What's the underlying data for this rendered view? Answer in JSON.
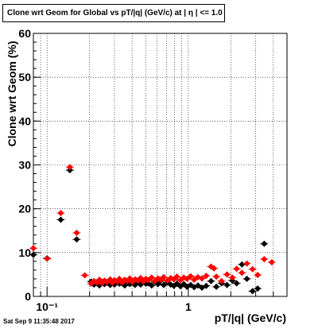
{
  "title": "Clone wrt Geom for Global vs pT/|q| (GeV/c) at |  η | <= 1.0",
  "datestamp": "Sat Sep  9 11:35:48 2017",
  "chart_data": {
    "type": "scatter",
    "title": "Clone wrt Geom for Global vs pT/|q| (GeV/c) at |  η | <= 1.0",
    "xlabel": "pT/|q| (GeV/c)",
    "ylabel": "Clone wrt Geom (%)",
    "xscale": "log",
    "xlim": [
      0.08,
      5.0
    ],
    "ylim": [
      0,
      60
    ],
    "yticks": [
      0,
      10,
      20,
      30,
      40,
      50,
      60
    ],
    "xtick_labels": [
      {
        "x": 0.1,
        "label": "10⁻¹"
      },
      {
        "x": 1,
        "label": "1"
      }
    ],
    "grid": true,
    "series": [
      {
        "color": "#000000",
        "marker": "diamond",
        "points": [
          {
            "x": 0.08,
            "y": 9.5
          },
          {
            "x": 0.1,
            "y": 8.7
          },
          {
            "x": 0.125,
            "y": 17.5
          },
          {
            "x": 0.145,
            "y": 28.8
          },
          {
            "x": 0.162,
            "y": 13.0
          },
          {
            "x": 0.205,
            "y": 3.4
          },
          {
            "x": 0.215,
            "y": 2.7
          },
          {
            "x": 0.225,
            "y": 3.0
          },
          {
            "x": 0.235,
            "y": 2.5
          },
          {
            "x": 0.245,
            "y": 3.3
          },
          {
            "x": 0.255,
            "y": 2.8
          },
          {
            "x": 0.265,
            "y": 3.1
          },
          {
            "x": 0.28,
            "y": 2.6
          },
          {
            "x": 0.29,
            "y": 3.2
          },
          {
            "x": 0.3,
            "y": 2.7
          },
          {
            "x": 0.315,
            "y": 3.4
          },
          {
            "x": 0.325,
            "y": 2.9
          },
          {
            "x": 0.34,
            "y": 3.0
          },
          {
            "x": 0.355,
            "y": 2.5
          },
          {
            "x": 0.37,
            "y": 3.3
          },
          {
            "x": 0.385,
            "y": 2.8
          },
          {
            "x": 0.4,
            "y": 3.1
          },
          {
            "x": 0.42,
            "y": 2.6
          },
          {
            "x": 0.44,
            "y": 3.2
          },
          {
            "x": 0.46,
            "y": 2.7
          },
          {
            "x": 0.48,
            "y": 3.4
          },
          {
            "x": 0.5,
            "y": 2.9
          },
          {
            "x": 0.52,
            "y": 3.0
          },
          {
            "x": 0.55,
            "y": 2.5
          },
          {
            "x": 0.58,
            "y": 3.3
          },
          {
            "x": 0.61,
            "y": 2.8
          },
          {
            "x": 0.64,
            "y": 3.6
          },
          {
            "x": 0.67,
            "y": 2.6
          },
          {
            "x": 0.71,
            "y": 3.2
          },
          {
            "x": 0.75,
            "y": 2.7
          },
          {
            "x": 0.79,
            "y": 2.4
          },
          {
            "x": 0.83,
            "y": 2.9
          },
          {
            "x": 0.88,
            "y": 2.3
          },
          {
            "x": 0.93,
            "y": 2.8
          },
          {
            "x": 0.98,
            "y": 2.2
          },
          {
            "x": 1.04,
            "y": 2.6
          },
          {
            "x": 1.1,
            "y": 2.1
          },
          {
            "x": 1.17,
            "y": 2.5
          },
          {
            "x": 1.25,
            "y": 2.0
          },
          {
            "x": 1.34,
            "y": 2.4
          },
          {
            "x": 1.45,
            "y": 3.5
          },
          {
            "x": 1.58,
            "y": 2.2
          },
          {
            "x": 1.72,
            "y": 3.0
          },
          {
            "x": 1.88,
            "y": 2.6
          },
          {
            "x": 2.05,
            "y": 3.6
          },
          {
            "x": 2.2,
            "y": 3.0
          },
          {
            "x": 2.4,
            "y": 7.3
          },
          {
            "x": 2.6,
            "y": 4.0
          },
          {
            "x": 2.85,
            "y": 1.2
          },
          {
            "x": 3.1,
            "y": 1.8
          },
          {
            "x": 3.45,
            "y": 12.0
          }
        ]
      },
      {
        "color": "#ff0000",
        "marker": "diamond",
        "points": [
          {
            "x": 0.08,
            "y": 11.0
          },
          {
            "x": 0.1,
            "y": 8.6
          },
          {
            "x": 0.125,
            "y": 19.0
          },
          {
            "x": 0.145,
            "y": 29.5
          },
          {
            "x": 0.162,
            "y": 14.5
          },
          {
            "x": 0.185,
            "y": 4.8
          },
          {
            "x": 0.205,
            "y": 2.9
          },
          {
            "x": 0.215,
            "y": 3.5
          },
          {
            "x": 0.225,
            "y": 3.2
          },
          {
            "x": 0.235,
            "y": 3.8
          },
          {
            "x": 0.245,
            "y": 3.0
          },
          {
            "x": 0.255,
            "y": 3.6
          },
          {
            "x": 0.265,
            "y": 3.3
          },
          {
            "x": 0.28,
            "y": 3.9
          },
          {
            "x": 0.29,
            "y": 3.1
          },
          {
            "x": 0.3,
            "y": 3.7
          },
          {
            "x": 0.315,
            "y": 3.4
          },
          {
            "x": 0.325,
            "y": 4.0
          },
          {
            "x": 0.34,
            "y": 3.2
          },
          {
            "x": 0.355,
            "y": 3.8
          },
          {
            "x": 0.37,
            "y": 3.5
          },
          {
            "x": 0.385,
            "y": 4.1
          },
          {
            "x": 0.4,
            "y": 3.3
          },
          {
            "x": 0.42,
            "y": 3.9
          },
          {
            "x": 0.44,
            "y": 3.6
          },
          {
            "x": 0.46,
            "y": 4.2
          },
          {
            "x": 0.48,
            "y": 3.4
          },
          {
            "x": 0.5,
            "y": 4.0
          },
          {
            "x": 0.52,
            "y": 3.7
          },
          {
            "x": 0.55,
            "y": 4.3
          },
          {
            "x": 0.58,
            "y": 3.5
          },
          {
            "x": 0.61,
            "y": 4.1
          },
          {
            "x": 0.64,
            "y": 3.8
          },
          {
            "x": 0.67,
            "y": 4.4
          },
          {
            "x": 0.71,
            "y": 3.6
          },
          {
            "x": 0.75,
            "y": 4.2
          },
          {
            "x": 0.79,
            "y": 3.9
          },
          {
            "x": 0.83,
            "y": 4.5
          },
          {
            "x": 0.88,
            "y": 3.7
          },
          {
            "x": 0.93,
            "y": 4.3
          },
          {
            "x": 0.98,
            "y": 4.0
          },
          {
            "x": 1.04,
            "y": 4.6
          },
          {
            "x": 1.1,
            "y": 3.8
          },
          {
            "x": 1.17,
            "y": 4.4
          },
          {
            "x": 1.25,
            "y": 4.1
          },
          {
            "x": 1.34,
            "y": 4.7
          },
          {
            "x": 1.45,
            "y": 6.8
          },
          {
            "x": 1.52,
            "y": 6.4
          },
          {
            "x": 1.58,
            "y": 4.5
          },
          {
            "x": 1.72,
            "y": 3.5
          },
          {
            "x": 1.88,
            "y": 5.0
          },
          {
            "x": 2.05,
            "y": 4.3
          },
          {
            "x": 2.2,
            "y": 6.3
          },
          {
            "x": 2.4,
            "y": 5.4
          },
          {
            "x": 2.6,
            "y": 7.5
          },
          {
            "x": 2.85,
            "y": 6.2
          },
          {
            "x": 3.1,
            "y": 4.9
          },
          {
            "x": 3.45,
            "y": 8.5
          },
          {
            "x": 3.9,
            "y": 7.8
          }
        ]
      }
    ]
  }
}
